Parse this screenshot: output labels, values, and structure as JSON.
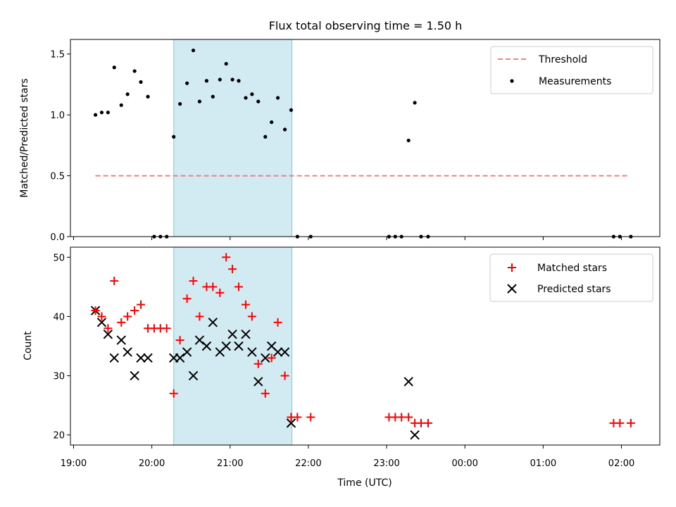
{
  "chart_data": {
    "type": "scatter",
    "title": "Flux total observing time = 1.50 h",
    "x_time_unit": "hours UTC (values past 24 are after midnight)",
    "xlabel": "Time (UTC)",
    "x_ticks": [
      {
        "value": 19,
        "label": "19:00"
      },
      {
        "value": 20,
        "label": "20:00"
      },
      {
        "value": 21,
        "label": "21:00"
      },
      {
        "value": 22,
        "label": "22:00"
      },
      {
        "value": 23,
        "label": "23:00"
      },
      {
        "value": 24,
        "label": "00:00"
      },
      {
        "value": 25,
        "label": "01:00"
      },
      {
        "value": 26,
        "label": "02:00"
      }
    ],
    "xlim": [
      18.96,
      26.49
    ],
    "shaded_interval": [
      20.28,
      21.79
    ],
    "shade_color": "#add8e6",
    "top_panel": {
      "ylabel": "Matched/Predicted stars",
      "ylim": [
        0,
        1.62
      ],
      "y_ticks": [
        {
          "value": 0,
          "label": "0.0"
        },
        {
          "value": 0.5,
          "label": "0.5"
        },
        {
          "value": 1.0,
          "label": "1.0"
        },
        {
          "value": 1.5,
          "label": "1.5"
        }
      ],
      "threshold": {
        "name": "Threshold",
        "value": 0.5,
        "x_range": [
          19.28,
          26.1
        ],
        "color": "#f08080"
      },
      "measurements": {
        "name": "Measurements",
        "color": "#000000",
        "points": [
          [
            19.28,
            1.0
          ],
          [
            19.36,
            1.02
          ],
          [
            19.44,
            1.02
          ],
          [
            19.52,
            1.39
          ],
          [
            19.61,
            1.08
          ],
          [
            19.69,
            1.17
          ],
          [
            19.78,
            1.36
          ],
          [
            19.86,
            1.27
          ],
          [
            19.95,
            1.15
          ],
          [
            20.03,
            0.0
          ],
          [
            20.11,
            0.0
          ],
          [
            20.19,
            0.0
          ],
          [
            20.28,
            0.82
          ],
          [
            20.36,
            1.09
          ],
          [
            20.45,
            1.26
          ],
          [
            20.53,
            1.53
          ],
          [
            20.61,
            1.11
          ],
          [
            20.7,
            1.28
          ],
          [
            20.78,
            1.15
          ],
          [
            20.87,
            1.29
          ],
          [
            20.95,
            1.42
          ],
          [
            21.03,
            1.29
          ],
          [
            21.11,
            1.28
          ],
          [
            21.2,
            1.14
          ],
          [
            21.28,
            1.17
          ],
          [
            21.36,
            1.11
          ],
          [
            21.45,
            0.82
          ],
          [
            21.53,
            0.94
          ],
          [
            21.61,
            1.14
          ],
          [
            21.7,
            0.88
          ],
          [
            21.78,
            1.04
          ],
          [
            21.86,
            0.0
          ],
          [
            22.03,
            0.0
          ],
          [
            23.03,
            0.0
          ],
          [
            23.11,
            0.0
          ],
          [
            23.19,
            0.0
          ],
          [
            23.28,
            0.79
          ],
          [
            23.36,
            1.1
          ],
          [
            23.44,
            0.0
          ],
          [
            23.53,
            0.0
          ],
          [
            25.9,
            0.0
          ],
          [
            25.98,
            0.0
          ],
          [
            26.12,
            0.0
          ]
        ]
      }
    },
    "bottom_panel": {
      "ylabel": "Count",
      "ylim": [
        18.3,
        51.7
      ],
      "y_ticks": [
        {
          "value": 20,
          "label": "20"
        },
        {
          "value": 30,
          "label": "30"
        },
        {
          "value": 40,
          "label": "40"
        },
        {
          "value": 50,
          "label": "50"
        }
      ],
      "series": [
        {
          "name": "Matched stars",
          "marker": "plus",
          "color": "#ff0000",
          "points": [
            [
              19.28,
              41
            ],
            [
              19.36,
              40
            ],
            [
              19.44,
              38
            ],
            [
              19.52,
              46
            ],
            [
              19.61,
              39
            ],
            [
              19.69,
              40
            ],
            [
              19.78,
              41
            ],
            [
              19.86,
              42
            ],
            [
              19.95,
              38
            ],
            [
              20.03,
              38
            ],
            [
              20.11,
              38
            ],
            [
              20.19,
              38
            ],
            [
              20.28,
              27
            ],
            [
              20.36,
              36
            ],
            [
              20.45,
              43
            ],
            [
              20.53,
              46
            ],
            [
              20.61,
              40
            ],
            [
              20.7,
              45
            ],
            [
              20.78,
              45
            ],
            [
              20.87,
              44
            ],
            [
              20.95,
              50
            ],
            [
              21.03,
              48
            ],
            [
              21.11,
              45
            ],
            [
              21.2,
              42
            ],
            [
              21.28,
              40
            ],
            [
              21.36,
              32
            ],
            [
              21.45,
              27
            ],
            [
              21.53,
              33
            ],
            [
              21.61,
              39
            ],
            [
              21.7,
              30
            ],
            [
              21.78,
              23
            ],
            [
              21.86,
              23
            ],
            [
              22.03,
              23
            ],
            [
              23.03,
              23
            ],
            [
              23.11,
              23
            ],
            [
              23.19,
              23
            ],
            [
              23.28,
              23
            ],
            [
              23.36,
              22
            ],
            [
              23.44,
              22
            ],
            [
              23.53,
              22
            ],
            [
              25.9,
              22
            ],
            [
              25.98,
              22
            ],
            [
              26.12,
              22
            ]
          ]
        },
        {
          "name": "Predicted stars",
          "marker": "x",
          "color": "#000000",
          "points": [
            [
              19.28,
              41
            ],
            [
              19.36,
              39
            ],
            [
              19.44,
              37
            ],
            [
              19.52,
              33
            ],
            [
              19.61,
              36
            ],
            [
              19.69,
              34
            ],
            [
              19.78,
              30
            ],
            [
              19.86,
              33
            ],
            [
              19.95,
              33
            ],
            [
              20.28,
              33
            ],
            [
              20.36,
              33
            ],
            [
              20.45,
              34
            ],
            [
              20.53,
              30
            ],
            [
              20.61,
              36
            ],
            [
              20.7,
              35
            ],
            [
              20.78,
              39
            ],
            [
              20.87,
              34
            ],
            [
              20.95,
              35
            ],
            [
              21.03,
              37
            ],
            [
              21.11,
              35
            ],
            [
              21.2,
              37
            ],
            [
              21.28,
              34
            ],
            [
              21.36,
              29
            ],
            [
              21.45,
              33
            ],
            [
              21.53,
              35
            ],
            [
              21.61,
              34
            ],
            [
              21.7,
              34
            ],
            [
              21.78,
              22
            ],
            [
              23.28,
              29
            ],
            [
              23.36,
              20
            ]
          ]
        }
      ]
    }
  }
}
